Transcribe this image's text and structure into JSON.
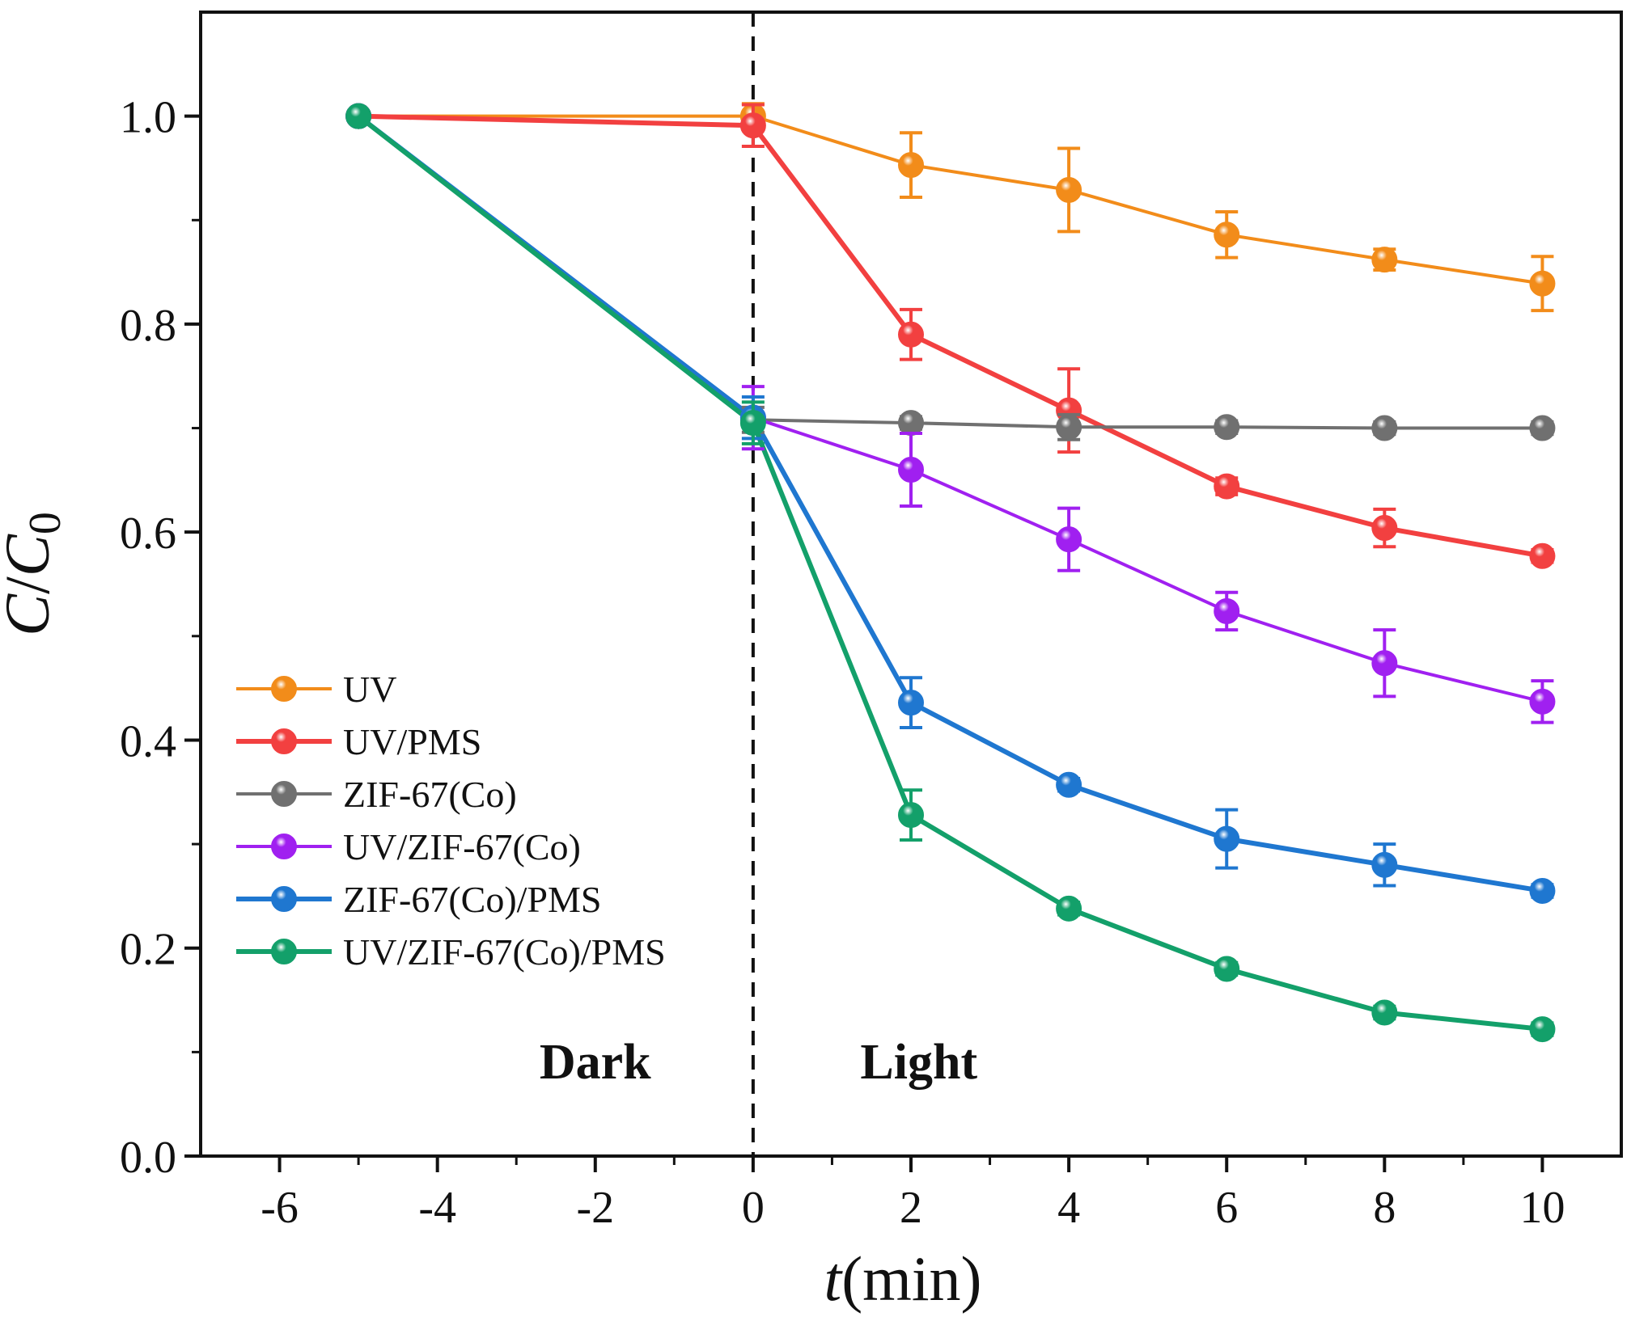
{
  "chart_data": {
    "type": "line",
    "title": "",
    "xlabel": {
      "italic": "t",
      "rest": "(min)"
    },
    "ylabel": {
      "c": "C",
      "slash": "/",
      "c0": "C",
      "sub": "0"
    },
    "xlim": [
      -7,
      11
    ],
    "ylim": [
      0,
      1.1
    ],
    "xticks": [
      -6,
      -4,
      -2,
      0,
      2,
      4,
      6,
      8,
      10
    ],
    "xtick_labels": [
      "-6",
      "-4",
      "-2",
      "0",
      "2",
      "4",
      "6",
      "8",
      "10"
    ],
    "yticks": [
      0.0,
      0.2,
      0.4,
      0.6,
      0.8,
      1.0
    ],
    "ytick_labels": [
      "0.0",
      "0.2",
      "0.4",
      "0.6",
      "0.8",
      "1.0"
    ],
    "divider_x": 0,
    "annotations": [
      {
        "text": "Dark",
        "x": -2,
        "y": 0.09
      },
      {
        "text": "Light",
        "x": 2.1,
        "y": 0.09
      }
    ],
    "legend_position": "center-left",
    "x": [
      -5,
      0,
      2,
      4,
      6,
      8,
      10
    ],
    "series": [
      {
        "name": "UV",
        "color": "#f28c1a",
        "values": [
          1.0,
          1.0,
          0.953,
          0.929,
          0.886,
          0.862,
          0.839
        ],
        "errors": [
          0,
          0.012,
          0.031,
          0.04,
          0.022,
          0.01,
          0.026
        ]
      },
      {
        "name": "UV/PMS",
        "color": "#f24040",
        "values": [
          1.0,
          0.991,
          0.79,
          0.717,
          0.644,
          0.604,
          0.577
        ],
        "errors": [
          0,
          0.02,
          0.024,
          0.04,
          0.008,
          0.018,
          0.006
        ]
      },
      {
        "name": "ZIF-67(Co)",
        "color": "#707070",
        "values": [
          1.0,
          0.708,
          0.705,
          0.701,
          0.701,
          0.7,
          0.7
        ],
        "errors": [
          0,
          0.012,
          0.006,
          0.012,
          0.006,
          0.006,
          0.006
        ]
      },
      {
        "name": "UV/ZIF-67(Co)",
        "color": "#a020f0",
        "values": [
          1.0,
          0.71,
          0.66,
          0.593,
          0.524,
          0.474,
          0.437
        ],
        "errors": [
          0,
          0.03,
          0.035,
          0.03,
          0.018,
          0.032,
          0.02
        ]
      },
      {
        "name": "ZIF-67(Co)/PMS",
        "color": "#1f77d0",
        "values": [
          1.0,
          0.71,
          0.436,
          0.357,
          0.305,
          0.28,
          0.255
        ],
        "errors": [
          0,
          0.02,
          0.024,
          0.006,
          0.028,
          0.02,
          0.006
        ]
      },
      {
        "name": "UV/ZIF-67(Co)/PMS",
        "color": "#13a06a",
        "values": [
          1.0,
          0.705,
          0.328,
          0.238,
          0.18,
          0.138,
          0.122
        ],
        "errors": [
          0,
          0.02,
          0.024,
          0.006,
          0.006,
          0.006,
          0.006
        ]
      }
    ]
  }
}
